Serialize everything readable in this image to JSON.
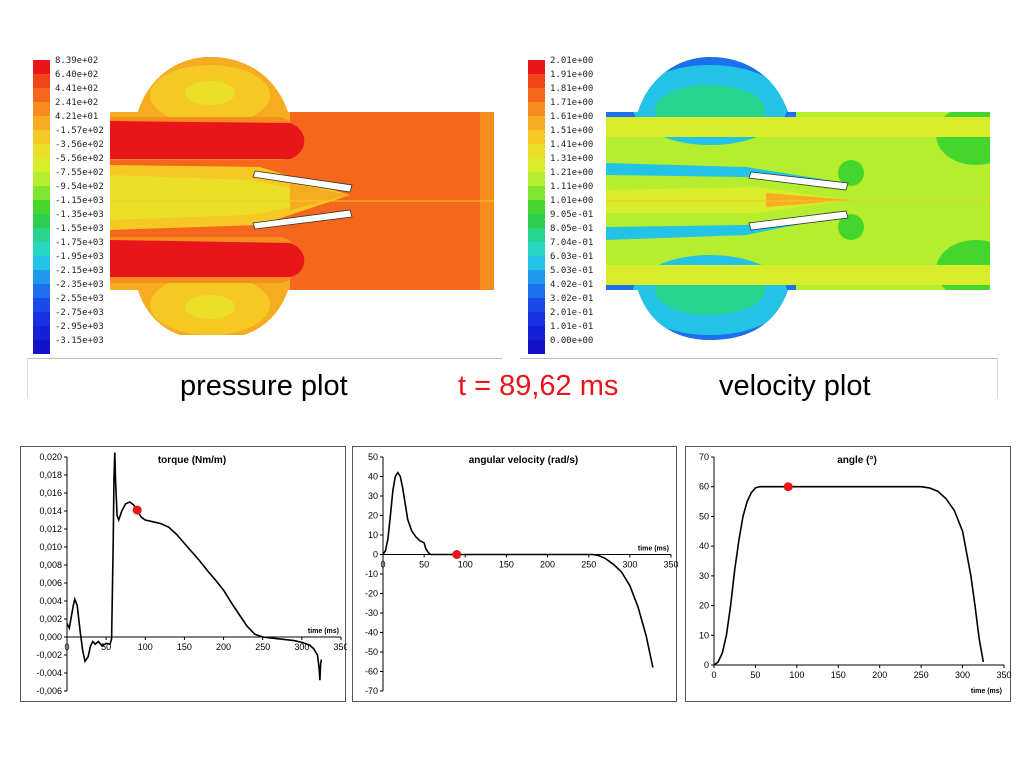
{
  "pressure_panel": {
    "legend_labels": [
      "8.39e+02",
      "6.40e+02",
      "4.41e+02",
      "2.41e+02",
      "4.21e+01",
      "-1.57e+02",
      "-3.56e+02",
      "-5.56e+02",
      "-7.55e+02",
      "-9.54e+02",
      "-1.15e+03",
      "-1.35e+03",
      "-1.55e+03",
      "-1.75e+03",
      "-1.95e+03",
      "-2.15e+03",
      "-2.35e+03",
      "-2.55e+03",
      "-2.75e+03",
      "-2.95e+03",
      "-3.15e+03"
    ],
    "caption": "pressure plot"
  },
  "velocity_panel": {
    "legend_labels": [
      "2.01e+00",
      "1.91e+00",
      "1.81e+00",
      "1.71e+00",
      "1.61e+00",
      "1.51e+00",
      "1.41e+00",
      "1.31e+00",
      "1.21e+00",
      "1.11e+00",
      "1.01e+00",
      "9.05e-01",
      "8.05e-01",
      "7.04e-01",
      "6.03e-01",
      "5.03e-01",
      "4.02e-01",
      "3.02e-01",
      "2.01e-01",
      "1.01e-01",
      "0.00e+00"
    ],
    "caption": "velocity plot"
  },
  "legend_colors": [
    "#e8161b",
    "#f2451a",
    "#f5671d",
    "#f78c1f",
    "#f6ac21",
    "#f5c824",
    "#eade28",
    "#d8ec2c",
    "#b4ee2e",
    "#7fe52f",
    "#44d62d",
    "#2ccf4c",
    "#28d38e",
    "#25d6c2",
    "#22c3e6",
    "#1f98ee",
    "#1c70ee",
    "#1a4ae8",
    "#1830df",
    "#1620d6",
    "#1212c8"
  ],
  "time_label": "t = 89,62 ms",
  "time_color": "#e8161b",
  "marker_color": "#e8161b",
  "chart_data": [
    {
      "type": "line",
      "title": "torque (Nm/m)",
      "xlabel": "time (ms)",
      "xlim": [
        0,
        350
      ],
      "ylim": [
        -0.006,
        0.02
      ],
      "xticks": [
        0,
        50,
        100,
        150,
        200,
        250,
        300,
        350
      ],
      "yticks": [
        -0.006,
        -0.004,
        -0.002,
        0,
        0.002,
        0.004,
        0.006,
        0.008,
        0.01,
        0.012,
        0.014,
        0.016,
        0.018,
        0.02
      ],
      "ytick_labels": [
        "-0,006",
        "-0,004",
        "-0,002",
        "0,000",
        "0,002",
        "0,004",
        "0,006",
        "0,008",
        "0,010",
        "0,012",
        "0,014",
        "0,016",
        "0,018",
        "0,020"
      ],
      "series": [
        {
          "x": [
            0,
            3,
            5,
            8,
            10,
            13,
            17,
            20,
            23,
            27,
            30,
            33,
            36,
            40,
            45,
            50,
            55,
            57,
            59,
            60,
            61,
            62,
            64,
            66,
            70,
            75,
            80,
            85,
            90,
            95,
            100,
            110,
            120,
            130,
            140,
            150,
            160,
            170,
            180,
            190,
            200,
            210,
            220,
            230,
            240,
            250,
            260,
            270,
            280,
            290,
            300,
            310,
            315,
            320,
            322,
            323,
            324,
            325
          ],
          "y": [
            0.0015,
            0.001,
            0.002,
            0.0035,
            0.0042,
            0.0035,
            0.0005,
            -0.0015,
            -0.0027,
            -0.0022,
            -0.001,
            -0.0005,
            -0.0008,
            -0.0005,
            -0.001,
            -0.0007,
            -0.0008,
            -0.0002,
            0.0105,
            0.0178,
            0.0205,
            0.0175,
            0.0135,
            0.013,
            0.014,
            0.0148,
            0.015,
            0.0147,
            0.014,
            0.0133,
            0.013,
            0.0128,
            0.0126,
            0.0122,
            0.0114,
            0.0104,
            0.0094,
            0.0084,
            0.0073,
            0.0063,
            0.0052,
            0.0038,
            0.0025,
            0.0012,
            0.0003,
            0.0,
            -0.0001,
            -0.0002,
            -0.0003,
            -0.0004,
            -0.0006,
            -0.0009,
            -0.0013,
            -0.002,
            -0.0035,
            -0.0048,
            -0.003,
            -0.0025
          ]
        }
      ],
      "marker": {
        "x": 89.62,
        "y": 0.0141
      }
    },
    {
      "type": "line",
      "title": "angular velocity (rad/s)",
      "xlabel": "time (ms)",
      "xlim": [
        0,
        350
      ],
      "ylim": [
        -70,
        50
      ],
      "xticks": [
        0,
        50,
        100,
        150,
        200,
        250,
        300,
        350
      ],
      "yticks": [
        -70,
        -60,
        -50,
        -40,
        -30,
        -20,
        -10,
        0,
        10,
        20,
        30,
        40,
        50
      ],
      "series": [
        {
          "x": [
            0,
            3,
            6,
            9,
            12,
            15,
            18,
            21,
            24,
            27,
            30,
            35,
            40,
            45,
            50,
            52,
            55,
            58,
            60,
            80,
            100,
            150,
            200,
            240,
            255,
            262,
            270,
            280,
            290,
            300,
            310,
            320,
            328
          ],
          "y": [
            0,
            2,
            8,
            20,
            33,
            40,
            42,
            40,
            34,
            26,
            18,
            12,
            9,
            7,
            6,
            3,
            1,
            0,
            0,
            0,
            0,
            0,
            0,
            0,
            0,
            -0.5,
            -2,
            -5,
            -9,
            -16,
            -27,
            -42,
            -58
          ]
        }
      ],
      "marker": {
        "x": 89.62,
        "y": 0
      }
    },
    {
      "type": "line",
      "title": "angle (°)",
      "xlabel": "time (ms)",
      "xlim": [
        0,
        350
      ],
      "ylim": [
        0,
        70
      ],
      "xticks": [
        0,
        50,
        100,
        150,
        200,
        250,
        300,
        350
      ],
      "yticks": [
        0,
        10,
        20,
        30,
        40,
        50,
        60,
        70
      ],
      "series": [
        {
          "x": [
            0,
            5,
            10,
            15,
            20,
            25,
            30,
            35,
            40,
            45,
            50,
            55,
            60,
            100,
            150,
            200,
            250,
            260,
            270,
            280,
            290,
            300,
            310,
            315,
            320,
            325
          ],
          "y": [
            0,
            1,
            4,
            10,
            20,
            32,
            42,
            50,
            55,
            58,
            59.6,
            60,
            60,
            60,
            60,
            60,
            60,
            59.6,
            58.5,
            56,
            52,
            45,
            30,
            20,
            9,
            1
          ]
        }
      ],
      "marker": {
        "x": 89.62,
        "y": 60
      }
    }
  ]
}
